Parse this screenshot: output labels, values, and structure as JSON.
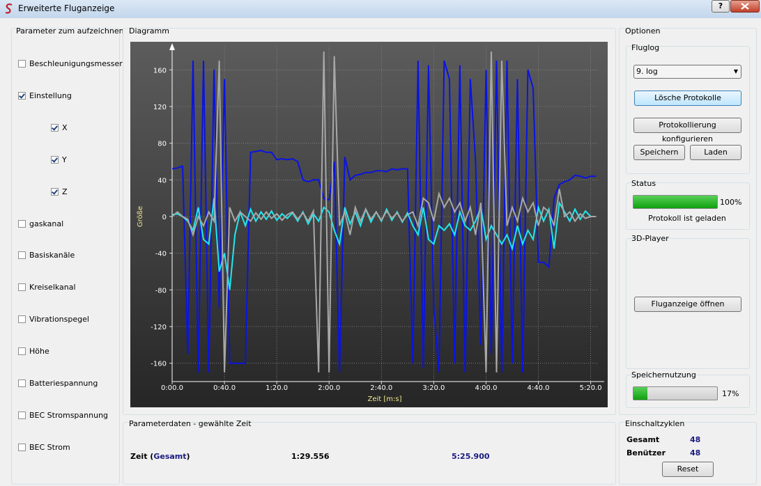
{
  "window": {
    "title": "Erweiterte Fluganzeige",
    "help_button": "?"
  },
  "parameters": {
    "title": "Parameter zum aufzeichnen",
    "items": [
      {
        "label": "Beschleunigungsmesser",
        "checked": false
      },
      {
        "label": "Einstellung",
        "checked": true,
        "children": [
          {
            "label": "X",
            "checked": true
          },
          {
            "label": "Y",
            "checked": true
          },
          {
            "label": "Z",
            "checked": true
          }
        ]
      },
      {
        "label": "gaskanal",
        "checked": false
      },
      {
        "label": "Basiskanäle",
        "checked": false
      },
      {
        "label": "Kreiselkanal",
        "checked": false
      },
      {
        "label": "Vibrationspegel",
        "checked": false
      },
      {
        "label": "Höhe",
        "checked": false
      },
      {
        "label": "Batteriespannung",
        "checked": false
      },
      {
        "label": "BEC Stromspannung",
        "checked": false
      },
      {
        "label": "BEC Strom",
        "checked": false
      }
    ]
  },
  "diagram": {
    "title": "Diagramm"
  },
  "chart_data": {
    "type": "line",
    "x_label": "Zeit [m:s]",
    "y_label": "Größe",
    "grid": true,
    "x": [
      0,
      4,
      8,
      12,
      16,
      20,
      24,
      28,
      32,
      36,
      40,
      44,
      48,
      52,
      56,
      60,
      64,
      68,
      72,
      76,
      80,
      84,
      88,
      92,
      96,
      100,
      104,
      108,
      112,
      116,
      120,
      124,
      128,
      132,
      136,
      140,
      144,
      148,
      152,
      156,
      160,
      164,
      168,
      172,
      176,
      180,
      184,
      188,
      192,
      196,
      200,
      204,
      208,
      212,
      216,
      220,
      224,
      228,
      232,
      236,
      240,
      244,
      248,
      252,
      256,
      260,
      264,
      268,
      272,
      276,
      280,
      284,
      288,
      292,
      296,
      300,
      304,
      308,
      312,
      316,
      320,
      324
    ],
    "series": [
      {
        "name": "X",
        "color": "#0a14e0",
        "values": [
          52,
          53,
          55,
          -150,
          170,
          -170,
          170,
          -170,
          160,
          -100,
          150,
          -160,
          -160,
          -160,
          -160,
          70,
          71,
          72,
          70,
          70,
          62,
          63,
          62,
          63,
          60,
          40,
          38,
          40,
          40,
          20,
          18,
          60,
          -170,
          65,
          40,
          45,
          46,
          48,
          48,
          50,
          50,
          49,
          52,
          51,
          52,
          52,
          -160,
          170,
          -165,
          165,
          -100,
          -170,
          170,
          150,
          -160,
          165,
          -170,
          150,
          60,
          -140,
          160,
          -150,
          170,
          -170,
          170,
          -160,
          150,
          -170,
          160,
          140,
          -50,
          -50,
          -55,
          20,
          35,
          38,
          40,
          45,
          44,
          42,
          44,
          44
        ]
      },
      {
        "name": "Y",
        "color": "#20e8f0",
        "values": [
          2,
          3,
          0,
          -5,
          -15,
          10,
          -25,
          -30,
          20,
          -60,
          -40,
          -80,
          -20,
          5,
          -10,
          8,
          -5,
          5,
          -3,
          6,
          -4,
          3,
          -2,
          4,
          -5,
          5,
          -8,
          3,
          -5,
          10,
          5,
          -15,
          -30,
          10,
          -8,
          5,
          -10,
          8,
          -6,
          5,
          -5,
          8,
          -4,
          5,
          -6,
          4,
          -10,
          -20,
          10,
          -25,
          -30,
          -10,
          -15,
          -8,
          -20,
          5,
          -10,
          -15,
          -5,
          10,
          -25,
          -10,
          -20,
          -30,
          -20,
          -35,
          -10,
          -30,
          -15,
          -25,
          10,
          -5,
          8,
          -35,
          15,
          5,
          -5,
          8,
          -3,
          6,
          0,
          0
        ]
      },
      {
        "name": "Z",
        "color": "#a8a8a8",
        "values": [
          0,
          5,
          0,
          -3,
          -20,
          0,
          -10,
          5,
          -5,
          170,
          -170,
          10,
          -5,
          5,
          0,
          -5,
          4,
          -3,
          5,
          -2,
          3,
          -4,
          2,
          5,
          -3,
          4,
          -5,
          6,
          -170,
          180,
          -170,
          175,
          -10,
          5,
          -20,
          10,
          -5,
          8,
          -3,
          5,
          -4,
          6,
          -2,
          4,
          -5,
          2,
          5,
          -10,
          20,
          15,
          -5,
          25,
          10,
          20,
          5,
          15,
          -5,
          10,
          -20,
          15,
          -170,
          180,
          -170,
          170,
          -10,
          10,
          -5,
          20,
          5,
          15,
          -10,
          10,
          5,
          -10,
          30,
          0,
          5,
          -5,
          3,
          -2,
          0,
          0
        ]
      }
    ],
    "xlim": [
      0,
      325
    ],
    "ylim": [
      -180,
      180
    ],
    "xticks": [
      {
        "value": 0,
        "label": "0:00.0"
      },
      {
        "value": 40,
        "label": "0:40.0"
      },
      {
        "value": 80,
        "label": "1:20.0"
      },
      {
        "value": 120,
        "label": "2:00.0"
      },
      {
        "value": 160,
        "label": "2:40.0"
      },
      {
        "value": 200,
        "label": "3:20.0"
      },
      {
        "value": 240,
        "label": "4:00.0"
      },
      {
        "value": 280,
        "label": "4:40.0"
      },
      {
        "value": 320,
        "label": "5:20.0"
      }
    ],
    "yticks": [
      -160,
      -120,
      -80,
      -40,
      0,
      40,
      80,
      120,
      160
    ]
  },
  "details": {
    "title": "Parameterdaten - gewählte Zeit",
    "label_prefix": "Zeit (",
    "label_scope": "Gesamt",
    "label_suffix": ")",
    "selected": "1:29.556",
    "total": "5:25.900"
  },
  "options": {
    "title": "Optionen",
    "fluglog": {
      "title": "Fluglog",
      "selected": "9. log",
      "buttons": [
        "Lösche Protokolle",
        "Protokollierung konfigurieren",
        "Speichern",
        "Laden"
      ]
    },
    "status": {
      "title": "Status",
      "progress": {
        "value": 100,
        "label": "100%"
      },
      "message": "Protokoll ist geladen"
    },
    "player": {
      "title": "3D-Player",
      "button": "Fluganzeige öffnen"
    },
    "storage": {
      "title": "Speichernutzung",
      "progress": {
        "value": 17,
        "label": "17%"
      }
    }
  },
  "cycles": {
    "title": "Einschaltzyklen",
    "rows": [
      {
        "label": "Gesamt",
        "value": "48"
      },
      {
        "label": "Benützer",
        "value": "48"
      }
    ],
    "button": "Reset"
  }
}
